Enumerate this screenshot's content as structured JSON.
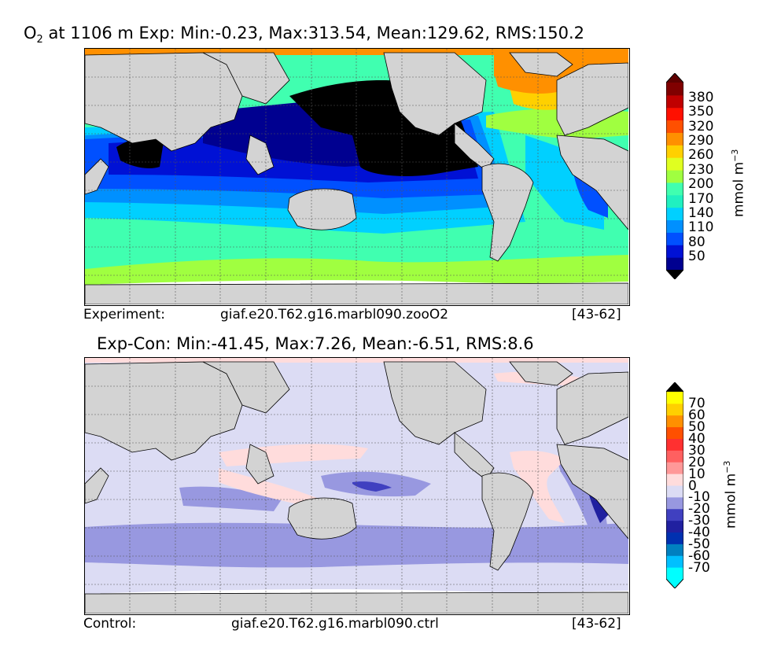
{
  "top_panel": {
    "title_var": "O",
    "title_sub": "2",
    "title_rest": " at 1106 m Exp: Min:-0.23, Max:313.54, Mean:129.62, RMS:150.2",
    "caption_left": "Experiment:",
    "caption_mid": "giaf.e20.T62.g16.marbl090.zooO2",
    "caption_right": "[43-62]",
    "colorbar": {
      "unit_text": "mmol m",
      "unit_exp": "−3",
      "ticks": [
        "380",
        "350",
        "320",
        "290",
        "260",
        "230",
        "200",
        "170",
        "140",
        "110",
        "80",
        "50"
      ],
      "colors": [
        "#000090",
        "#0011d5",
        "#0050ff",
        "#0090ff",
        "#00d0ff",
        "#20f0c0",
        "#40ffb0",
        "#a0ff40",
        "#e0ff20",
        "#ffd000",
        "#ff9000",
        "#ff5000",
        "#ff1000",
        "#c00000",
        "#800000"
      ],
      "under_color": "#000000",
      "over_color": "#600000"
    }
  },
  "bottom_panel": {
    "title": "Exp-Con: Min:-41.45, Max:7.26, Mean:-6.51, RMS:8.6",
    "caption_left": "Control:",
    "caption_mid": "giaf.e20.T62.g16.marbl090.ctrl",
    "caption_right": "[43-62]",
    "colorbar": {
      "unit_text": "mmol m",
      "unit_exp": "−3",
      "ticks": [
        "70",
        "60",
        "50",
        "40",
        "30",
        "20",
        "10",
        "0",
        "-10",
        "-20",
        "-30",
        "-40",
        "-50",
        "-60",
        "-70"
      ],
      "colors": [
        "#00ffff",
        "#00c0ff",
        "#0080c0",
        "#0030b0",
        "#2020a0",
        "#4040c0",
        "#9898e0",
        "#dcdcf4",
        "#ffdcdc",
        "#ff9898",
        "#ff6060",
        "#ff3030",
        "#ff5000",
        "#ff9000",
        "#ffd000",
        "#ffff00"
      ],
      "under_color": "#00ffff",
      "over_color": "#000000"
    }
  },
  "colors": {
    "land": "#d3d3d3",
    "ice_white": "#ffffff",
    "grid": "#555555"
  },
  "chart_data": [
    {
      "type": "heatmap",
      "title": "O2 at 1106 m Exp: Min:-0.23, Max:313.54, Mean:129.62, RMS:150.2",
      "colorbar_label": "mmol m-3",
      "colorbar_ticks": [
        50,
        80,
        110,
        140,
        170,
        200,
        230,
        260,
        290,
        320,
        350,
        380
      ],
      "stats": {
        "min": -0.23,
        "max": 313.54,
        "mean": 129.62,
        "rms": 150.2
      },
      "grid": true
    },
    {
      "type": "heatmap",
      "title": "Exp-Con: Min:-41.45, Max:7.26, Mean:-6.51, RMS:8.6",
      "colorbar_label": "mmol m-3",
      "colorbar_ticks": [
        -70,
        -60,
        -50,
        -40,
        -30,
        -20,
        -10,
        0,
        10,
        20,
        30,
        40,
        50,
        60,
        70
      ],
      "stats": {
        "min": -41.45,
        "max": 7.26,
        "mean": -6.51,
        "rms": 8.6
      },
      "grid": true
    }
  ]
}
